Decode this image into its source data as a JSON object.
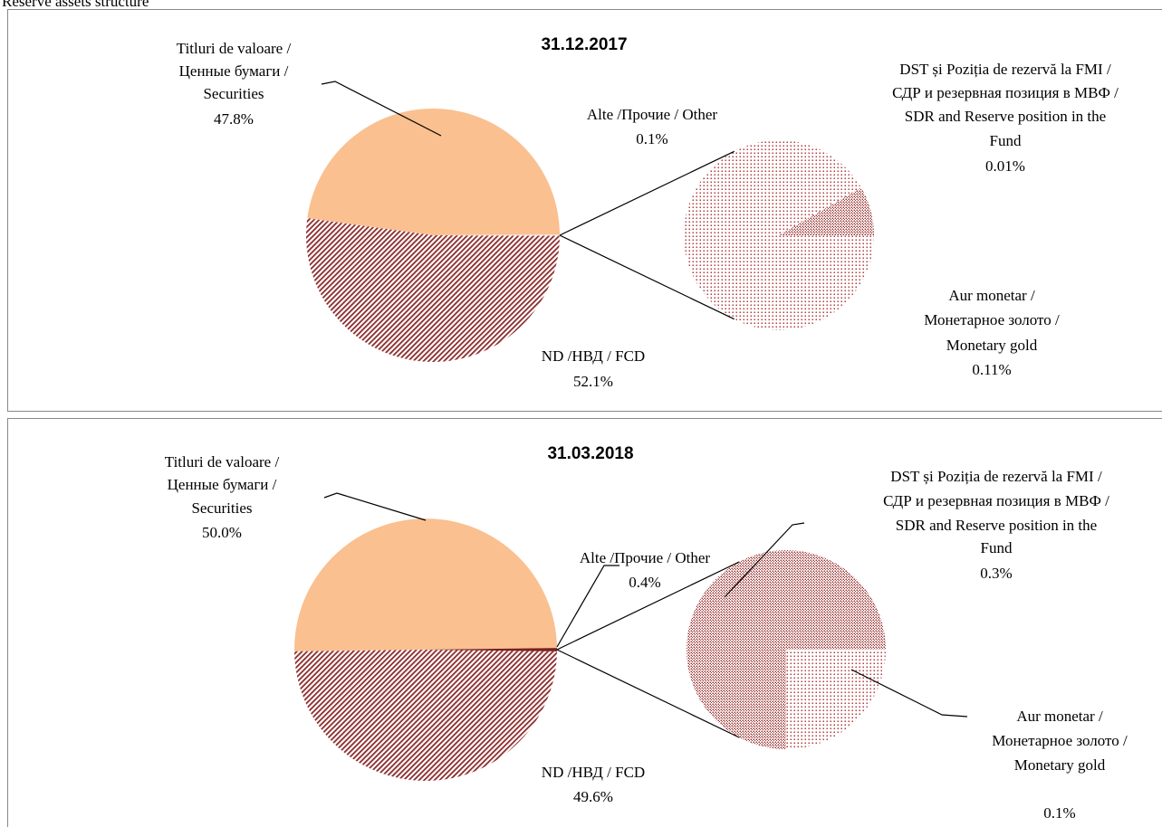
{
  "title": "Reserve assets structure",
  "chart_data": [
    {
      "type": "pie-of-pie",
      "title": "31.12.2017",
      "categories": [
        [
          "Titluri de valoare /",
          "Ценные бумаги /",
          "Securities"
        ],
        [
          "ND /НВД / FCD"
        ],
        [
          "Alte /Прочие / Other"
        ]
      ],
      "values": [
        47.8,
        52.1,
        0.1
      ],
      "value_labels": [
        "47.8%",
        "52.1%",
        "0.1%"
      ],
      "colors": [
        "#fac090",
        "#8b2a2a",
        "#7a1f1f"
      ],
      "fills": [
        "solid",
        "hatch",
        "dots"
      ],
      "secondary": {
        "categories": [
          [
            "DST și Poziția de rezervă la FMI /",
            "СДР и резервная позиция в МВФ /",
            "SDR and Reserve position in the",
            "Fund"
          ],
          [
            "Aur monetar /",
            "Монетарное золото /",
            "Monetary gold"
          ]
        ],
        "values": [
          0.01,
          0.11
        ],
        "value_labels": [
          "0.01%",
          "0.11%"
        ],
        "colors": [
          "#9b3333",
          "#b04040"
        ],
        "fills": [
          "dense-dots",
          "dots"
        ]
      }
    },
    {
      "type": "pie-of-pie",
      "title": "31.03.2018",
      "categories": [
        [
          "Titluri de valoare /",
          "Ценные бумаги /",
          "Securities"
        ],
        [
          "ND /НВД / FCD"
        ],
        [
          "Alte /Прочие / Other"
        ]
      ],
      "values": [
        50.0,
        49.6,
        0.4
      ],
      "value_labels": [
        "50.0%",
        "49.6%",
        "0.4%"
      ],
      "colors": [
        "#fac090",
        "#8b2a2a",
        "#7a1f1f"
      ],
      "fills": [
        "solid",
        "hatch",
        "solid"
      ],
      "secondary": {
        "categories": [
          [
            "DST și Poziția de rezervă la FMI /",
            "СДР и резервная позиция в МВФ /",
            "SDR and Reserve position in the",
            "Fund"
          ],
          [
            "Aur monetar /",
            "Монетарное золото /",
            "Monetary gold"
          ]
        ],
        "values": [
          0.3,
          0.1
        ],
        "value_labels": [
          "0.3%",
          "0.1%"
        ],
        "colors": [
          "#9b3333",
          "#b04040"
        ],
        "fills": [
          "dense-dots",
          "dots"
        ]
      }
    }
  ]
}
